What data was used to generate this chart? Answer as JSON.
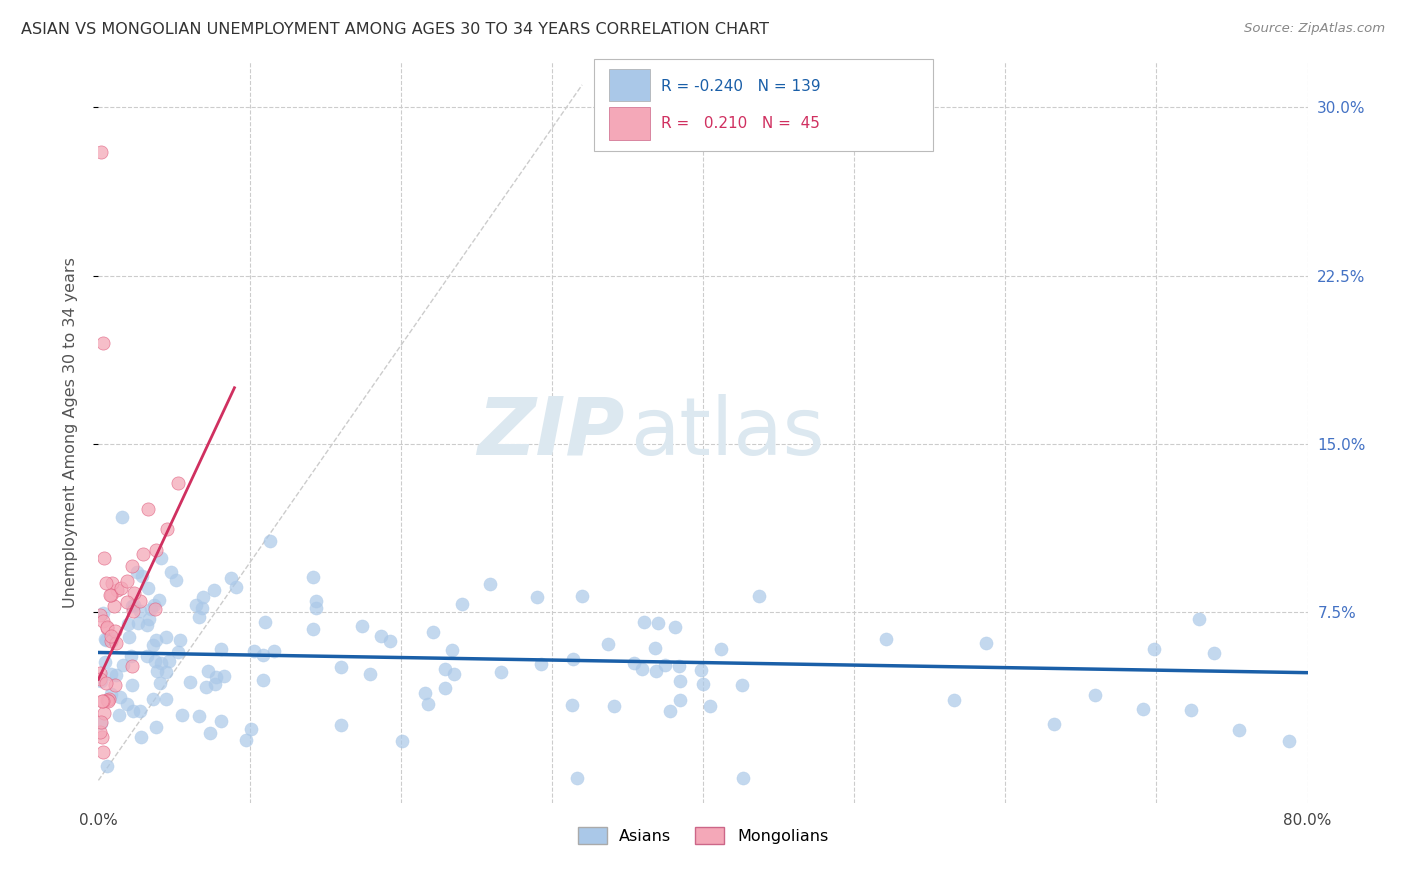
{
  "title": "ASIAN VS MONGOLIAN UNEMPLOYMENT AMONG AGES 30 TO 34 YEARS CORRELATION CHART",
  "source": "Source: ZipAtlas.com",
  "ylabel": "Unemployment Among Ages 30 to 34 years",
  "xlim": [
    0,
    0.8
  ],
  "ylim": [
    -0.01,
    0.32
  ],
  "ytick_vals": [
    0.075,
    0.15,
    0.225,
    0.3
  ],
  "ytick_labels": [
    "7.5%",
    "15.0%",
    "22.5%",
    "30.0%"
  ],
  "xtick_vals": [
    0.0,
    0.1,
    0.2,
    0.3,
    0.4,
    0.5,
    0.6,
    0.7,
    0.8
  ],
  "xtick_labels": [
    "0.0%",
    "",
    "",
    "",
    "",
    "",
    "",
    "",
    "80.0%"
  ],
  "asian_R": -0.24,
  "asian_N": 139,
  "mongolian_R": 0.21,
  "mongolian_N": 45,
  "asian_color": "#aac8e8",
  "asian_edge_color": "#aac8e8",
  "asian_line_color": "#1a5fa8",
  "mongolian_color": "#f4a8b8",
  "mongolian_edge_color": "#e06080",
  "mongolian_line_color": "#d03060",
  "watermark_zip": "ZIP",
  "watermark_atlas": "atlas",
  "watermark_color": "#dce8f0",
  "diagonal_color": "#cccccc",
  "grid_color": "#cccccc",
  "legend_asian_text": "R = -0.240   N = 139",
  "legend_mong_text": "R =   0.210   N =  45"
}
